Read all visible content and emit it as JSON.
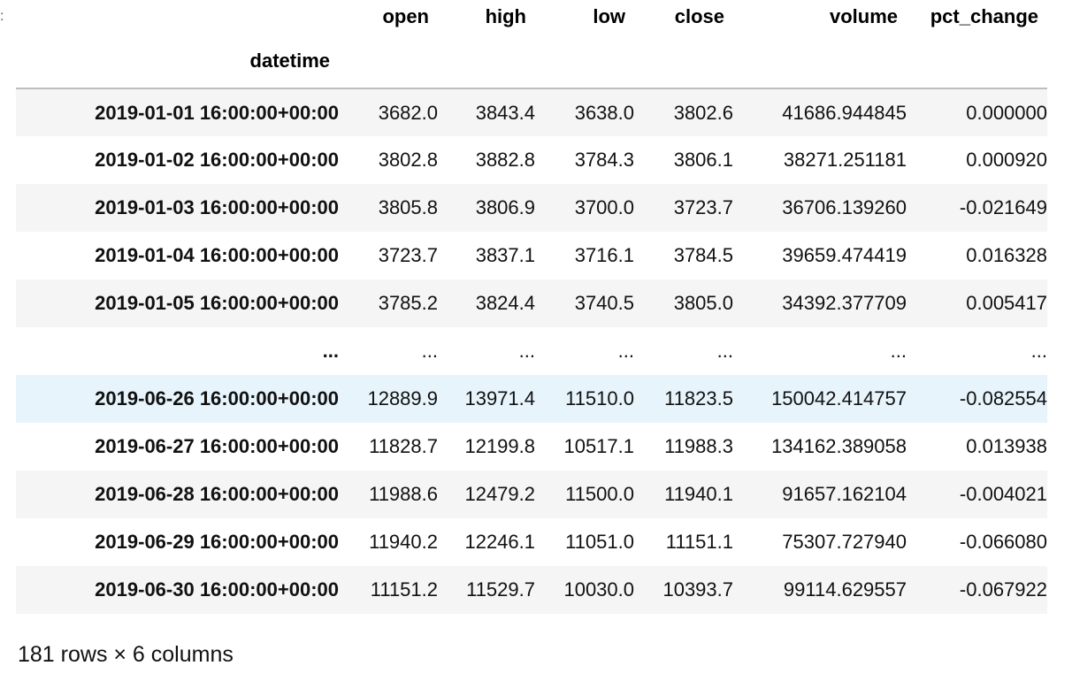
{
  "table": {
    "columns": [
      "open",
      "high",
      "low",
      "close",
      "volume",
      "pct_change"
    ],
    "index_name": "datetime",
    "rows": [
      {
        "index": "2019-01-01 16:00:00+00:00",
        "values": [
          "3682.0",
          "3843.4",
          "3638.0",
          "3802.6",
          "41686.944845",
          "0.000000"
        ]
      },
      {
        "index": "2019-01-02 16:00:00+00:00",
        "values": [
          "3802.8",
          "3882.8",
          "3784.3",
          "3806.1",
          "38271.251181",
          "0.000920"
        ]
      },
      {
        "index": "2019-01-03 16:00:00+00:00",
        "values": [
          "3805.8",
          "3806.9",
          "3700.0",
          "3723.7",
          "36706.139260",
          "-0.021649"
        ]
      },
      {
        "index": "2019-01-04 16:00:00+00:00",
        "values": [
          "3723.7",
          "3837.1",
          "3716.1",
          "3784.5",
          "39659.474419",
          "0.016328"
        ]
      },
      {
        "index": "2019-01-05 16:00:00+00:00",
        "values": [
          "3785.2",
          "3824.4",
          "3740.5",
          "3805.0",
          "34392.377709",
          "0.005417"
        ]
      },
      {
        "index": "...",
        "values": [
          "...",
          "...",
          "...",
          "...",
          "...",
          "..."
        ]
      },
      {
        "index": "2019-06-26 16:00:00+00:00",
        "values": [
          "12889.9",
          "13971.4",
          "11510.0",
          "11823.5",
          "150042.414757",
          "-0.082554"
        ]
      },
      {
        "index": "2019-06-27 16:00:00+00:00",
        "values": [
          "11828.7",
          "12199.8",
          "10517.1",
          "11988.3",
          "134162.389058",
          "0.013938"
        ]
      },
      {
        "index": "2019-06-28 16:00:00+00:00",
        "values": [
          "11988.6",
          "12479.2",
          "11500.0",
          "11940.1",
          "91657.162104",
          "-0.004021"
        ]
      },
      {
        "index": "2019-06-29 16:00:00+00:00",
        "values": [
          "11940.2",
          "12246.1",
          "11051.0",
          "11151.1",
          "75307.727940",
          "-0.066080"
        ]
      },
      {
        "index": "2019-06-30 16:00:00+00:00",
        "values": [
          "11151.2",
          "11529.7",
          "10030.0",
          "10393.7",
          "99114.629557",
          "-0.067922"
        ]
      }
    ],
    "highlighted_row": 6
  },
  "shape_text": "181 rows × 6 columns",
  "colors": {
    "row_striped": "#f5f5f5",
    "row_hover": "#e7f4fc",
    "header_rule": "#bdbdbd"
  }
}
